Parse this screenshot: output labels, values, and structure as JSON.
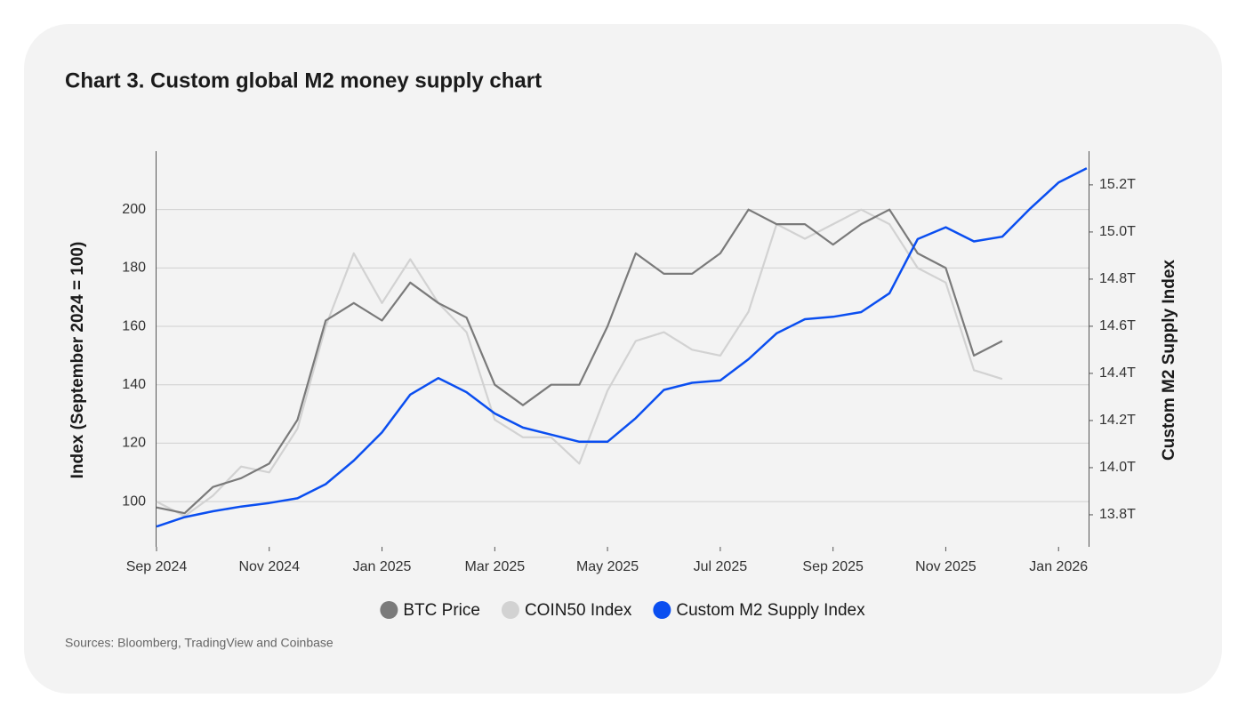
{
  "chart_data": {
    "type": "line",
    "title": "Chart 3. Custom global M2 money supply chart",
    "y_label": "Index (September 2024 = 100)",
    "y2_label": "Custom M2 Supply Index",
    "sources": "Sources: Bloomberg, TradingView and Coinbase",
    "x": [
      2024.6667,
      2024.7083,
      2024.75,
      2024.7917,
      2024.8333,
      2024.875,
      2024.9167,
      2024.9583,
      2025.0,
      2025.0417,
      2025.0833,
      2025.125,
      2025.1667,
      2025.2083,
      2025.25,
      2025.2917,
      2025.3333,
      2025.375,
      2025.4167,
      2025.4583,
      2025.5,
      2025.5417,
      2025.5833,
      2025.625,
      2025.6667,
      2025.7083,
      2025.75,
      2025.7917,
      2025.8333,
      2025.875,
      2025.9167,
      2025.9583,
      2026.0,
      2026.0417
    ],
    "xlim": [
      2024.6667,
      2026.0444
    ],
    "xticks": [
      {
        "value": 2024.6667,
        "label": "Sep 2024"
      },
      {
        "value": 2024.8333,
        "label": "Nov 2024"
      },
      {
        "value": 2025.0,
        "label": "Jan 2025"
      },
      {
        "value": 2025.1667,
        "label": "Mar 2025"
      },
      {
        "value": 2025.3333,
        "label": "May 2025"
      },
      {
        "value": 2025.5,
        "label": "Jul 2025"
      },
      {
        "value": 2025.6667,
        "label": "Sep 2025"
      },
      {
        "value": 2025.8333,
        "label": "Nov 2025"
      },
      {
        "value": 2026.0,
        "label": "Jan 2026"
      }
    ],
    "ylim": [
      84.5,
      220
    ],
    "yticks": [
      100,
      120,
      140,
      160,
      180,
      200
    ],
    "y2lim": [
      13.664,
      15.343
    ],
    "y2ticks": [
      {
        "value": 13.8,
        "label": "13.8T"
      },
      {
        "value": 14.0,
        "label": "14.0T"
      },
      {
        "value": 14.2,
        "label": "14.2T"
      },
      {
        "value": 14.4,
        "label": "14.4T"
      },
      {
        "value": 14.6,
        "label": "14.6T"
      },
      {
        "value": 14.8,
        "label": "14.8T"
      },
      {
        "value": 15.0,
        "label": "15.0T"
      },
      {
        "value": 15.2,
        "label": "15.2T"
      }
    ],
    "grid": true,
    "series": [
      {
        "name": "BTC Price",
        "color": "#7a7a7a",
        "values": [
          98,
          96,
          105,
          108,
          113,
          128,
          162,
          168,
          162,
          175,
          168,
          163,
          140,
          133,
          140,
          140,
          160,
          185,
          178,
          178,
          185,
          200,
          195,
          195,
          188,
          195,
          200,
          185,
          180,
          150,
          155,
          null,
          null,
          null
        ]
      },
      {
        "name": "COIN50 Index",
        "color": "#d2d2d2",
        "values": [
          100,
          95,
          102,
          112,
          110,
          125,
          160,
          185,
          168,
          183,
          168,
          158,
          128,
          122,
          122,
          113,
          138,
          155,
          158,
          152,
          150,
          165,
          195,
          190,
          195,
          200,
          195,
          180,
          175,
          145,
          142,
          null,
          null,
          null
        ]
      },
      {
        "name": "Custom M2 Supply Index",
        "color": "#0a4ef0",
        "axis": "y2",
        "values": [
          13.75,
          13.79,
          13.815,
          13.835,
          13.85,
          13.87,
          13.93,
          14.03,
          14.15,
          14.31,
          14.38,
          14.32,
          14.23,
          14.17,
          14.14,
          14.11,
          14.11,
          14.21,
          14.33,
          14.36,
          14.37,
          14.46,
          14.57,
          14.63,
          14.64,
          14.66,
          14.74,
          14.97,
          15.02,
          14.96,
          14.98,
          15.1,
          15.21,
          15.27
        ]
      }
    ]
  }
}
